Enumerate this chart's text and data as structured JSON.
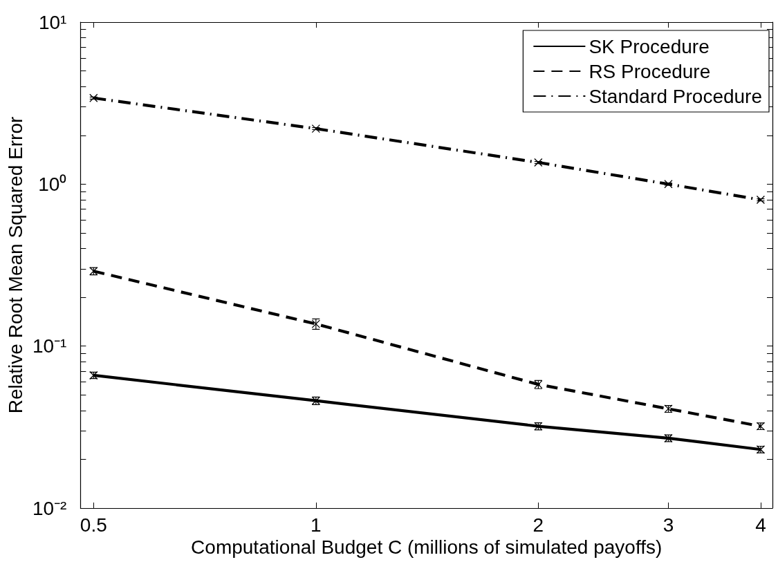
{
  "chart_data": {
    "type": "line",
    "xlabel": "Computational Budget C (millions of simulated payoffs)",
    "ylabel": "Relative Root Mean Squared Error",
    "x": [
      0.5,
      1,
      2,
      3,
      4
    ],
    "series": [
      {
        "name": "SK Procedure",
        "color": "#000000",
        "line_style": "solid",
        "values": [
          0.066,
          0.046,
          0.032,
          0.027,
          0.023
        ],
        "errors": [
          0.003,
          0.0025,
          0.0016,
          0.0013,
          0.0011
        ]
      },
      {
        "name": "RS Procedure",
        "color": "#000000",
        "line_style": "dashed",
        "values": [
          0.29,
          0.137,
          0.058,
          0.041,
          0.032
        ],
        "errors": [
          0.015,
          0.01,
          0.0034,
          0.002,
          0.0015
        ]
      },
      {
        "name": "Standard Procedure",
        "color": "#000000",
        "line_style": "dashdot",
        "values": [
          3.4,
          2.2,
          1.36,
          1.0,
          0.8
        ],
        "errors": [
          0.05,
          0.03,
          0.02,
          0.015,
          0.012
        ]
      }
    ],
    "xlim": [
      0.48,
      4.15
    ],
    "ylim": [
      0.01,
      10
    ],
    "xticks": [
      0.5,
      1,
      2,
      3,
      4
    ],
    "yticks": [
      {
        "value": 0.01,
        "label": "10⁻²"
      },
      {
        "value": 0.02,
        "label": null
      },
      {
        "value": 0.03,
        "label": null
      },
      {
        "value": 0.04,
        "label": null
      },
      {
        "value": 0.05,
        "label": null
      },
      {
        "value": 0.06,
        "label": null
      },
      {
        "value": 0.07,
        "label": null
      },
      {
        "value": 0.08,
        "label": null
      },
      {
        "value": 0.09,
        "label": null
      },
      {
        "value": 0.1,
        "label": "10⁻¹"
      },
      {
        "value": 0.2,
        "label": null
      },
      {
        "value": 0.3,
        "label": null
      },
      {
        "value": 0.4,
        "label": null
      },
      {
        "value": 0.5,
        "label": null
      },
      {
        "value": 0.6,
        "label": null
      },
      {
        "value": 0.7,
        "label": null
      },
      {
        "value": 0.8,
        "label": null
      },
      {
        "value": 0.9,
        "label": null
      },
      {
        "value": 1,
        "label": "10⁰"
      },
      {
        "value": 2,
        "label": null
      },
      {
        "value": 3,
        "label": null
      },
      {
        "value": 4,
        "label": null
      },
      {
        "value": 5,
        "label": null
      },
      {
        "value": 6,
        "label": null
      },
      {
        "value": 7,
        "label": null
      },
      {
        "value": 8,
        "label": null
      },
      {
        "value": 9,
        "label": null
      },
      {
        "value": 10,
        "label": "10¹"
      }
    ],
    "log": "xy",
    "grid": false,
    "legend": "top right",
    "marker": "cross"
  }
}
